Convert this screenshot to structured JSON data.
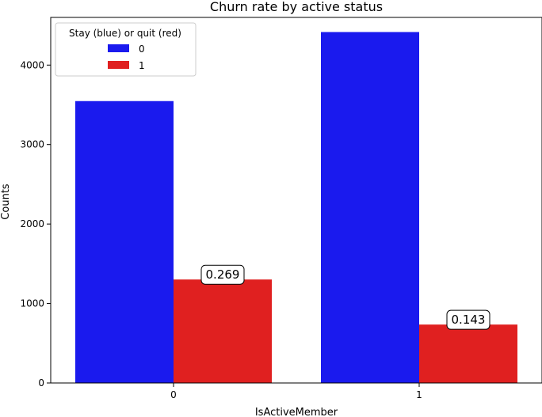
{
  "chart_data": {
    "type": "bar",
    "title": "Churn rate by active status",
    "xlabel": "IsActiveMember",
    "ylabel": "Counts",
    "categories": [
      "0",
      "1"
    ],
    "series": [
      {
        "name": "0",
        "color": "#1a1aee",
        "values": [
          3547,
          4416
        ]
      },
      {
        "name": "1",
        "color": "#e02020",
        "values": [
          1302,
          735
        ]
      }
    ],
    "annotations": [
      {
        "category": "0",
        "series": "1",
        "text": "0.269"
      },
      {
        "category": "1",
        "series": "1",
        "text": "0.143"
      }
    ],
    "ylim": [
      0,
      4600
    ],
    "yticks": [
      0,
      1000,
      2000,
      3000,
      4000
    ],
    "legend": {
      "title": "Stay (blue) or quit (red)",
      "position": "top-left"
    },
    "grid": false
  }
}
